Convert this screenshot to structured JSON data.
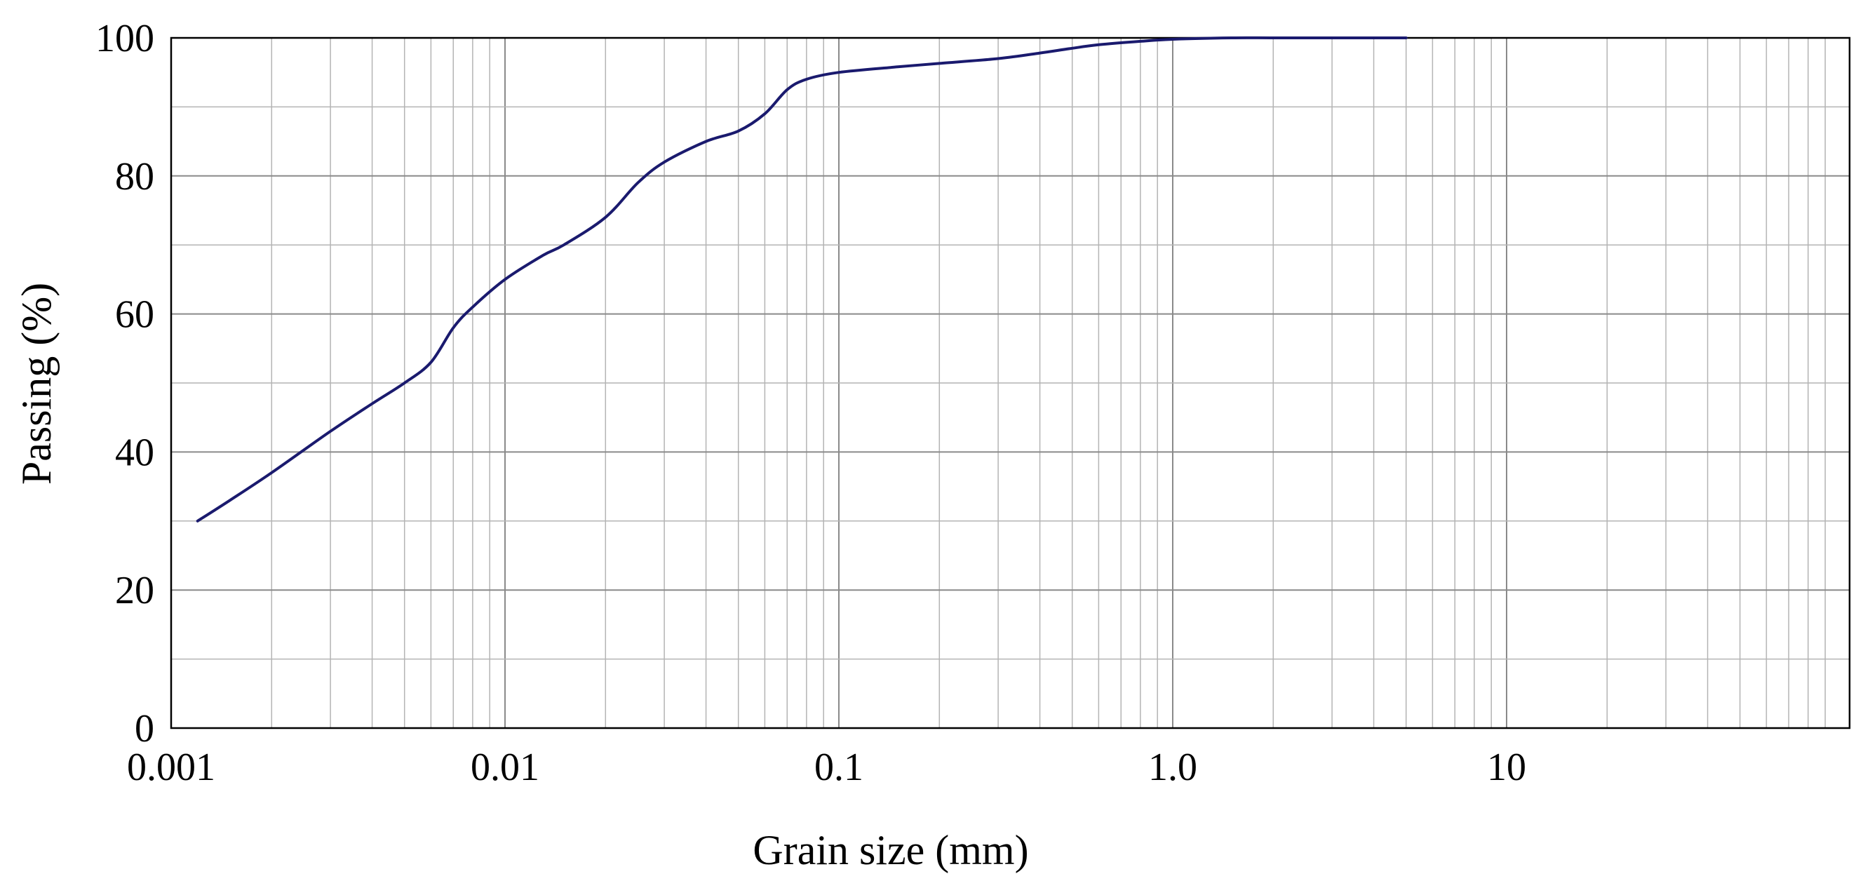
{
  "chart_data": {
    "type": "line",
    "title": "",
    "xlabel": "Grain size (mm)",
    "ylabel": "Passing (%)",
    "xscale": "log",
    "xlim": [
      0.001,
      100
    ],
    "ylim": [
      0,
      100
    ],
    "grid": true,
    "legend": "none",
    "x_ticks": [
      {
        "value": 0.001,
        "label": "0.001"
      },
      {
        "value": 0.01,
        "label": "0.01"
      },
      {
        "value": 0.1,
        "label": "0.1"
      },
      {
        "value": 1,
        "label": "1.0"
      },
      {
        "value": 10,
        "label": "10"
      }
    ],
    "y_ticks": [
      {
        "value": 0,
        "label": "0"
      },
      {
        "value": 20,
        "label": "20"
      },
      {
        "value": 40,
        "label": "40"
      },
      {
        "value": 60,
        "label": "60"
      },
      {
        "value": 80,
        "label": "80"
      },
      {
        "value": 100,
        "label": "100"
      }
    ],
    "series": [
      {
        "color": "#1a1a6e",
        "x": [
          0.0012,
          0.0015,
          0.002,
          0.003,
          0.004,
          0.005,
          0.006,
          0.007,
          0.008,
          0.01,
          0.013,
          0.015,
          0.02,
          0.025,
          0.03,
          0.04,
          0.05,
          0.06,
          0.07,
          0.08,
          0.1,
          0.15,
          0.2,
          0.3,
          0.4,
          0.5,
          0.6,
          0.8,
          1.0,
          1.5,
          2.0,
          3.0,
          4.0,
          5.0
        ],
        "y": [
          30,
          33,
          37,
          43,
          47,
          50,
          53,
          58,
          61,
          65,
          68.5,
          70,
          74,
          79,
          82,
          85,
          86.5,
          89,
          92.5,
          94,
          95,
          95.8,
          96.3,
          97,
          97.8,
          98.5,
          99,
          99.5,
          99.8,
          100,
          100,
          100,
          100,
          100
        ]
      }
    ]
  }
}
